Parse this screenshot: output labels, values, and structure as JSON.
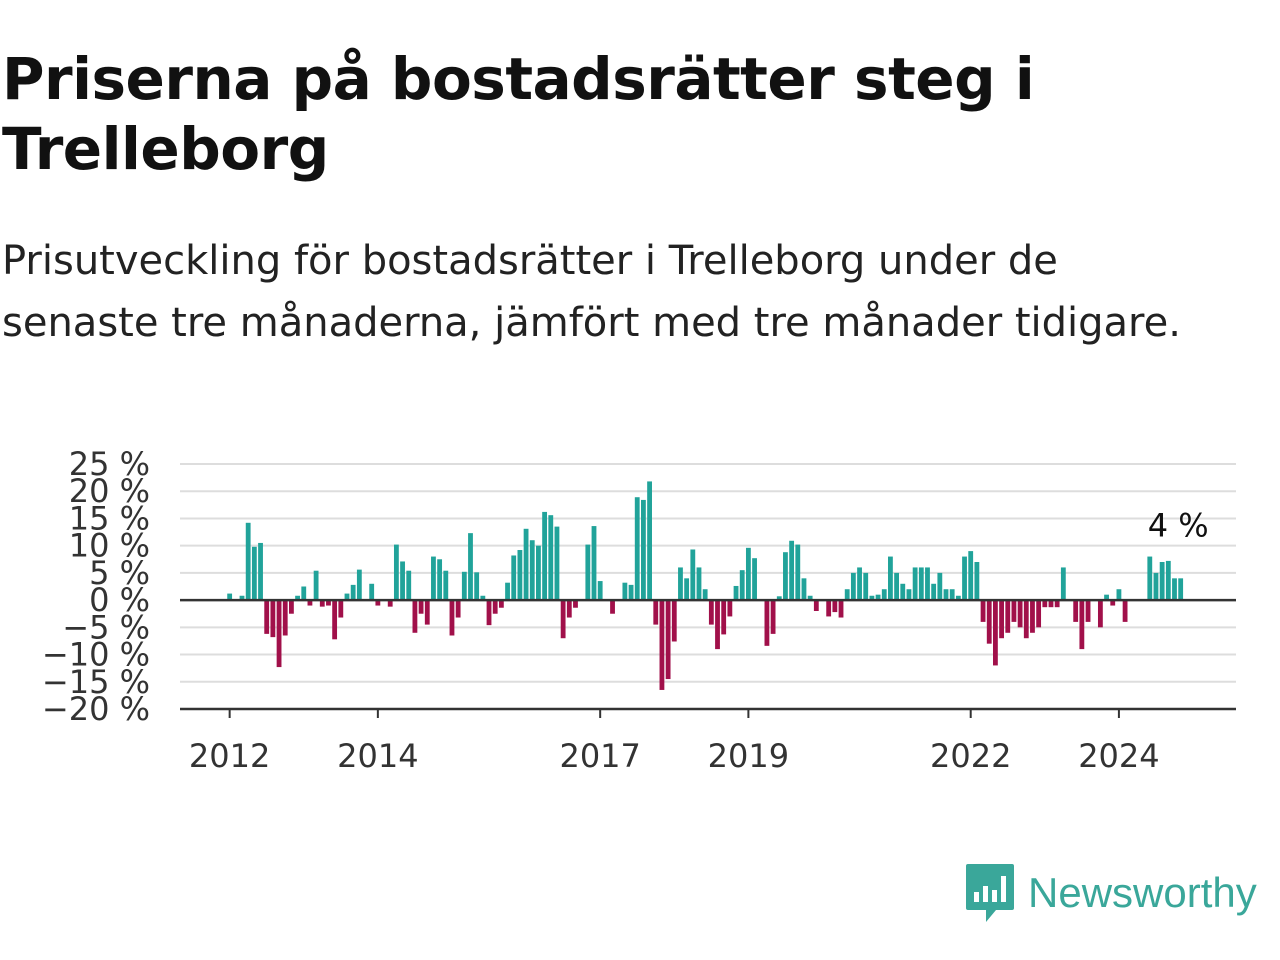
{
  "title": "Priserna på bostadsrätter steg i Trelleborg",
  "subtitle": "Prisutveckling för bostadsrätter i Trelleborg under de senaste tre månaderna, jämfört med tre månader tidigare.",
  "brand": "Newsworthy",
  "colors": {
    "positive": "#21a39a",
    "negative": "#a1104a",
    "grid": "#dddddd",
    "axis": "#333333"
  },
  "chart_data": {
    "type": "bar",
    "unit": "%",
    "yticks": [
      25,
      20,
      15,
      10,
      5,
      0,
      -5,
      -10,
      -15,
      -20
    ],
    "ytick_labels": [
      "25 %",
      "20 %",
      "15 %",
      "10 %",
      "5 %",
      "0 %",
      "−5 %",
      "−10 %",
      "−15 %",
      "−20 %"
    ],
    "ylim": [
      -20,
      25
    ],
    "xticks": [
      2012,
      2014,
      2017,
      2019,
      2022,
      2024
    ],
    "xlim_years": [
      2011.33,
      2025.58
    ],
    "start": {
      "year": 2012,
      "month": 1
    },
    "annotation": "4 %",
    "values": [
      1.2,
      0,
      0.8,
      14.2,
      9.8,
      10.5,
      -6.2,
      -6.8,
      -12.3,
      -6.5,
      -2.5,
      0.8,
      2.5,
      -1.0,
      5.4,
      -1.2,
      -1.0,
      -7.2,
      -3.2,
      1.2,
      2.8,
      5.6,
      0,
      3.0,
      -1.0,
      0,
      -1.2,
      10.2,
      7.1,
      5.4,
      -6.0,
      -2.5,
      -4.5,
      8.0,
      7.5,
      5.4,
      -6.5,
      -3.2,
      5.2,
      12.3,
      5.1,
      0.8,
      -4.6,
      -2.5,
      -1.4,
      3.2,
      8.2,
      9.2,
      13.1,
      11.0,
      10.0,
      16.2,
      15.6,
      13.5,
      -7.0,
      -3.2,
      -1.4,
      0,
      10.2,
      13.6,
      3.5,
      0,
      -2.5,
      0,
      3.2,
      2.8,
      18.9,
      18.4,
      21.8,
      -4.5,
      -16.5,
      -14.5,
      -7.6,
      6.0,
      4.0,
      9.3,
      6.0,
      2.0,
      -4.5,
      -9.0,
      -6.3,
      -3.0,
      2.6,
      5.5,
      9.6,
      7.7,
      0,
      -8.4,
      -6.2,
      0.7,
      8.8,
      10.9,
      10.2,
      4.0,
      0.8,
      -2.0,
      0,
      -3.0,
      -2.2,
      -3.2,
      2.0,
      5.0,
      6.0,
      5.0,
      0.8,
      1.0,
      2.0,
      8.0,
      5.0,
      3.0,
      2.0,
      6.0,
      6.0,
      6.0,
      3.0,
      5.0,
      2.0,
      2.0,
      0.8,
      8.0,
      9.0,
      7.0,
      -4.0,
      -8.0,
      -12.0,
      -7.0,
      -6.0,
      -4.0,
      -5.0,
      -7.0,
      -6.0,
      -5.0,
      -1.3,
      -1.3,
      -1.3,
      6.0,
      0,
      -4.0,
      -9.0,
      -4.0,
      0,
      -5.0,
      1.0,
      -1.0,
      2.0,
      -4.0,
      0,
      0,
      0,
      8.0,
      5.0,
      7.0,
      7.2,
      4.0,
      4.0
    ]
  }
}
